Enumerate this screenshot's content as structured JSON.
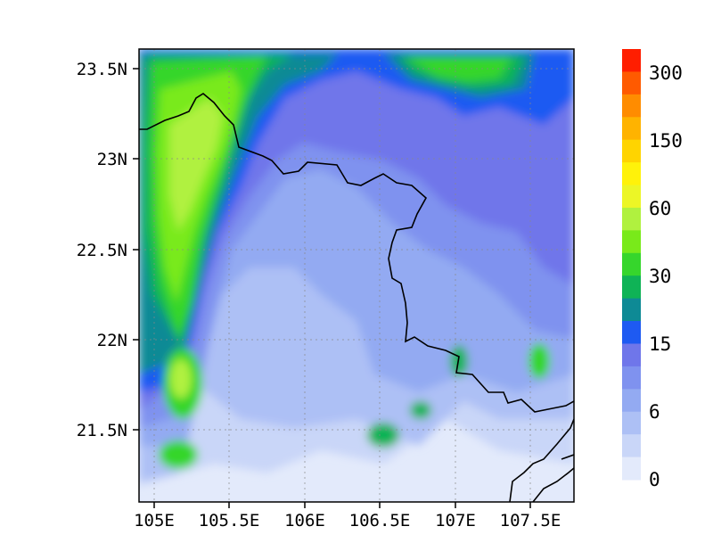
{
  "map": {
    "x_ticks": [
      "105E",
      "105.5E",
      "106E",
      "106.5E",
      "107E",
      "107.5E"
    ],
    "y_ticks": [
      "23.5N",
      "23N",
      "22.5N",
      "22N",
      "21.5N"
    ],
    "grid": "dotted",
    "field_levels": [
      {
        "color": "#e3eafb"
      },
      {
        "color": "#c9d6f8"
      },
      {
        "color": "#adc0f5"
      },
      {
        "color": "#93aaf2"
      },
      {
        "color": "#7f92ef"
      },
      {
        "color": "#6f76ea"
      },
      {
        "color": "#1e5af2"
      },
      {
        "color": "#0e8a95"
      },
      {
        "color": "#0fb356"
      },
      {
        "color": "#36d62c"
      },
      {
        "color": "#79ea1a"
      },
      {
        "color": "#b0f13f"
      }
    ]
  },
  "colorbar": {
    "labels": [
      "0",
      "6",
      "15",
      "30",
      "60",
      "150",
      "300"
    ],
    "colors": [
      "#e3eafb",
      "#c9d6f8",
      "#adc0f5",
      "#93aaf2",
      "#7f92ef",
      "#6f76ea",
      "#1e5af2",
      "#0e8a95",
      "#0fb356",
      "#36d62c",
      "#79ea1a",
      "#b0f13f",
      "#ecf626",
      "#fff20a",
      "#ffd400",
      "#ffb300",
      "#ff8c00",
      "#ff5a00",
      "#ff1e00"
    ]
  }
}
